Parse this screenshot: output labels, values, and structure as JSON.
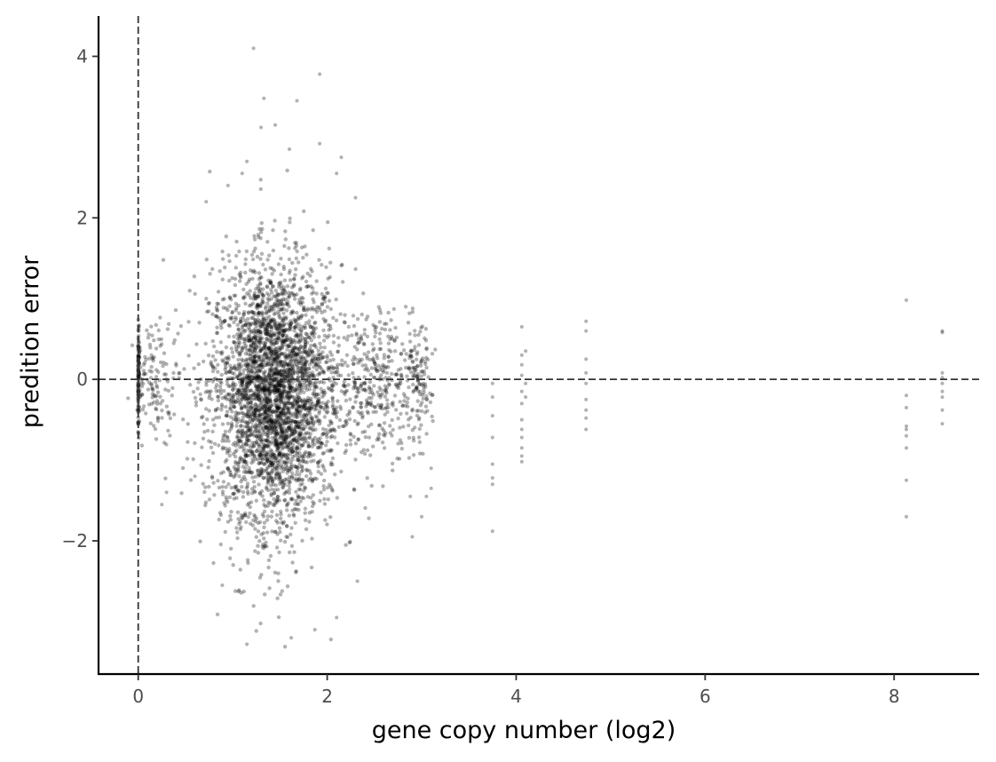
{
  "chart_data": {
    "type": "scatter",
    "title": "",
    "xlabel": "gene copy number (log2)",
    "ylabel": "predition error",
    "xlim": [
      -0.42,
      8.9
    ],
    "ylim": [
      -3.65,
      4.5
    ],
    "x_ticks": [
      0,
      2,
      4,
      6,
      8
    ],
    "x_tick_labels": [
      "0",
      "2",
      "4",
      "6",
      "8"
    ],
    "y_ticks": [
      -2,
      0,
      2,
      4
    ],
    "y_tick_labels": [
      "−2",
      "0",
      "2",
      "4"
    ],
    "reference_lines": [
      {
        "orientation": "vertical",
        "value": 0,
        "style": "dashed"
      },
      {
        "orientation": "horizontal",
        "value": 0,
        "style": "dashed"
      }
    ],
    "grid": false,
    "legend": "none",
    "point_color": "#000000",
    "point_opacity": 0.3,
    "clusters": [
      {
        "x_center": 1.45,
        "x_spread": 0.35,
        "y_center": -0.1,
        "y_spread": 0.75,
        "n": 2600
      },
      {
        "x_center": 1.4,
        "x_spread": 0.25,
        "y_center": -0.5,
        "y_spread": 0.9,
        "n": 900
      },
      {
        "x_center": 0.0,
        "x_spread": 0.01,
        "y_center": 0.0,
        "y_spread": 0.3,
        "n": 120
      },
      {
        "x_center": 0.2,
        "x_spread": 0.12,
        "y_center": 0.0,
        "y_spread": 0.35,
        "n": 120
      },
      {
        "x_center": 2.55,
        "x_spread": 0.2,
        "y_center": 0.0,
        "y_spread": 0.45,
        "n": 320
      },
      {
        "x_center": 2.95,
        "x_spread": 0.08,
        "y_center": -0.1,
        "y_spread": 0.35,
        "n": 120
      }
    ],
    "points": [
      {
        "x": 1.22,
        "y": 4.1
      },
      {
        "x": 1.92,
        "y": 3.78
      },
      {
        "x": 1.33,
        "y": 3.48
      },
      {
        "x": 1.68,
        "y": 3.45
      },
      {
        "x": 1.45,
        "y": 3.15
      },
      {
        "x": 1.3,
        "y": 3.12
      },
      {
        "x": 1.92,
        "y": 2.92
      },
      {
        "x": 1.6,
        "y": 2.85
      },
      {
        "x": 1.15,
        "y": 2.7
      },
      {
        "x": 2.15,
        "y": 2.75
      },
      {
        "x": 1.1,
        "y": 2.55
      },
      {
        "x": 2.1,
        "y": 2.55
      },
      {
        "x": 0.95,
        "y": 2.4
      },
      {
        "x": 2.3,
        "y": 2.25
      },
      {
        "x": 0.72,
        "y": 2.2
      },
      {
        "x": 0.89,
        "y": -2.55
      },
      {
        "x": 1.15,
        "y": -3.28
      },
      {
        "x": 1.62,
        "y": -3.2
      },
      {
        "x": 1.87,
        "y": -3.1
      },
      {
        "x": 2.1,
        "y": -2.95
      },
      {
        "x": 2.32,
        "y": -2.5
      },
      {
        "x": 0.3,
        "y": -1.4
      },
      {
        "x": 0.25,
        "y": -1.55
      },
      {
        "x": 0.6,
        "y": -1.2
      },
      {
        "x": 3.1,
        "y": -1.1
      },
      {
        "x": 3.1,
        "y": -1.35
      },
      {
        "x": 2.9,
        "y": -1.95
      },
      {
        "x": 2.88,
        "y": -1.45
      },
      {
        "x": 3.0,
        "y": -1.7
      },
      {
        "x": 3.05,
        "y": -1.45
      },
      {
        "x": 3.75,
        "y": -0.05
      },
      {
        "x": 3.75,
        "y": -0.22
      },
      {
        "x": 3.75,
        "y": -0.45
      },
      {
        "x": 3.75,
        "y": -0.72
      },
      {
        "x": 3.75,
        "y": -1.05
      },
      {
        "x": 3.75,
        "y": -1.22
      },
      {
        "x": 3.75,
        "y": -1.3
      },
      {
        "x": 3.75,
        "y": -1.88
      },
      {
        "x": 4.06,
        "y": 0.65
      },
      {
        "x": 4.06,
        "y": 0.3
      },
      {
        "x": 4.06,
        "y": 0.18
      },
      {
        "x": 4.06,
        "y": 0.05
      },
      {
        "x": 4.06,
        "y": -0.15
      },
      {
        "x": 4.06,
        "y": -0.3
      },
      {
        "x": 4.06,
        "y": -0.5
      },
      {
        "x": 4.06,
        "y": -0.62
      },
      {
        "x": 4.06,
        "y": -0.72
      },
      {
        "x": 4.06,
        "y": -0.85
      },
      {
        "x": 4.06,
        "y": -0.95
      },
      {
        "x": 4.06,
        "y": -1.02
      },
      {
        "x": 4.1,
        "y": 0.35
      },
      {
        "x": 4.1,
        "y": -0.05
      },
      {
        "x": 4.1,
        "y": -0.22
      },
      {
        "x": 4.74,
        "y": 0.72
      },
      {
        "x": 4.74,
        "y": 0.6
      },
      {
        "x": 4.74,
        "y": 0.25
      },
      {
        "x": 4.74,
        "y": 0.08
      },
      {
        "x": 4.74,
        "y": -0.05
      },
      {
        "x": 4.74,
        "y": -0.25
      },
      {
        "x": 4.74,
        "y": -0.38
      },
      {
        "x": 4.74,
        "y": -0.48
      },
      {
        "x": 4.74,
        "y": -0.62
      },
      {
        "x": 8.13,
        "y": 0.98
      },
      {
        "x": 8.13,
        "y": -0.2
      },
      {
        "x": 8.13,
        "y": -0.35
      },
      {
        "x": 8.13,
        "y": -0.58
      },
      {
        "x": 8.13,
        "y": -0.62
      },
      {
        "x": 8.13,
        "y": -0.7
      },
      {
        "x": 8.13,
        "y": -0.85
      },
      {
        "x": 8.13,
        "y": -1.25
      },
      {
        "x": 8.13,
        "y": -1.7
      },
      {
        "x": 8.51,
        "y": 0.6
      },
      {
        "x": 8.51,
        "y": 0.58
      },
      {
        "x": 8.51,
        "y": 0.08
      },
      {
        "x": 8.51,
        "y": 0.02
      },
      {
        "x": 8.51,
        "y": -0.05
      },
      {
        "x": 8.51,
        "y": -0.15
      },
      {
        "x": 8.51,
        "y": -0.22
      },
      {
        "x": 8.51,
        "y": -0.38
      },
      {
        "x": 8.51,
        "y": -0.55
      }
    ]
  }
}
